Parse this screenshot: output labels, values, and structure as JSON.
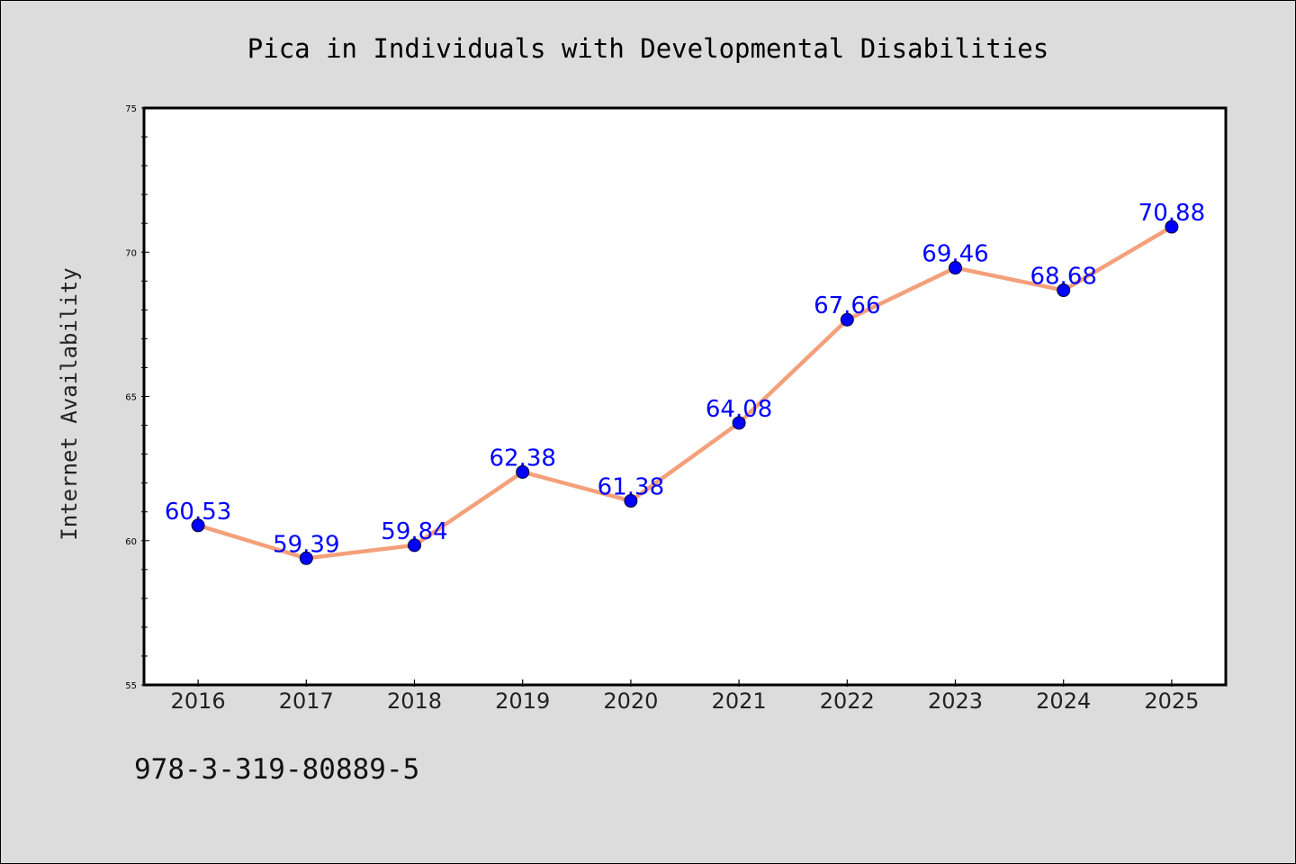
{
  "chart_data": {
    "type": "line",
    "title": "Pica in Individuals with Developmental Disabilities",
    "xlabel": "",
    "ylabel": "Internet Availability",
    "categories": [
      "2016",
      "2017",
      "2018",
      "2019",
      "2020",
      "2021",
      "2022",
      "2023",
      "2024",
      "2025"
    ],
    "values": [
      60.53,
      59.39,
      59.84,
      62.38,
      61.38,
      64.08,
      67.66,
      69.46,
      68.68,
      70.88
    ],
    "value_labels": [
      "60.53",
      "59.39",
      "59.84",
      "62.38",
      "61.38",
      "64.08",
      "67.66",
      "69.46",
      "68.68",
      "70.88"
    ],
    "ylim": [
      55,
      75
    ],
    "yticks": [
      "55",
      "60",
      "65",
      "70",
      "75"
    ],
    "grid": false,
    "line_color": "#f4a07a",
    "marker_color": "#0000ff",
    "label_color": "#0000ff",
    "background_color": "#dcdcdc",
    "plot_background_color": "#ffffff"
  },
  "footer": {
    "isbn": "978-3-319-80889-5"
  }
}
